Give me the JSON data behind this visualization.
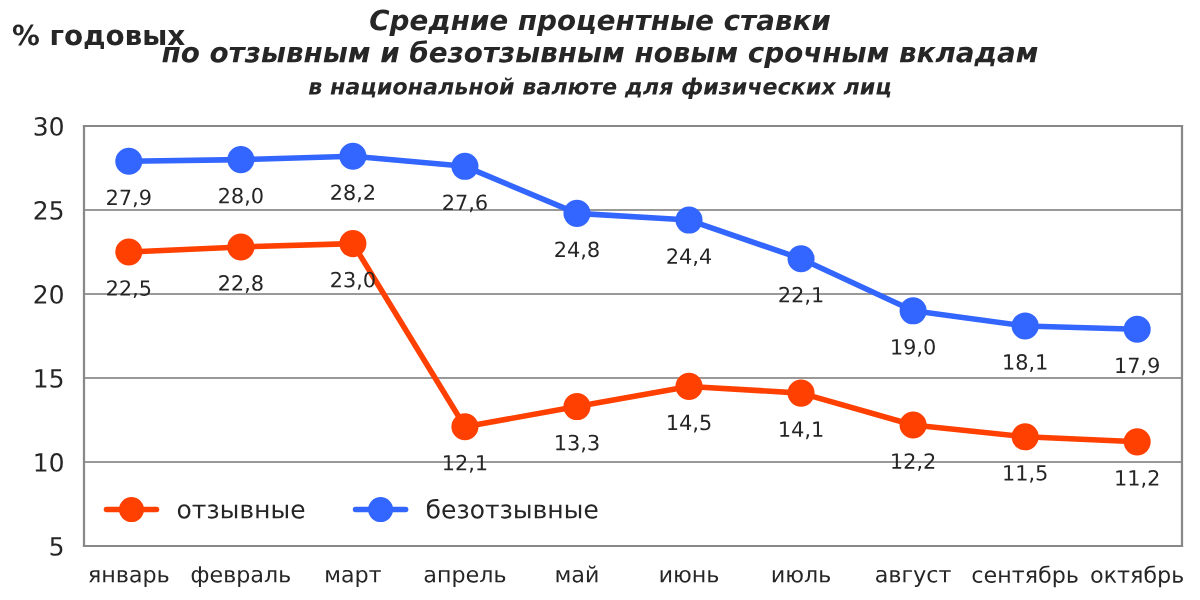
{
  "chart_data": {
    "type": "line",
    "title": "Средние процентные ставки\nпо отзывным и безотзывным новым срочным вкладам",
    "subtitle": "в национальной валюте для физических лиц",
    "ylabel": "% годовых",
    "categories": [
      "январь",
      "февраль",
      "март",
      "апрель",
      "май",
      "июнь",
      "июль",
      "август",
      "сентябрь",
      "октябрь"
    ],
    "series": [
      {
        "name": "отзывные",
        "color": "#ff4000",
        "values": [
          22.5,
          22.8,
          23.0,
          12.1,
          13.3,
          14.5,
          14.1,
          12.2,
          11.5,
          11.2
        ],
        "value_labels": [
          "22,5",
          "22,8",
          "23,0",
          "12,1",
          "13,3",
          "14,5",
          "14,1",
          "12,2",
          "11,5",
          "11,2"
        ]
      },
      {
        "name": "безотзывные",
        "color": "#3366ff",
        "values": [
          27.9,
          28.0,
          28.2,
          27.6,
          24.8,
          24.4,
          22.1,
          19.0,
          18.1,
          17.9
        ],
        "value_labels": [
          "27,9",
          "28,0",
          "28,2",
          "27,6",
          "24,8",
          "24,4",
          "22,1",
          "19,0",
          "18,1",
          "17,9"
        ]
      }
    ],
    "ylim": [
      5,
      30
    ],
    "yticks": [
      5,
      10,
      15,
      20,
      25,
      30
    ],
    "grid": "y",
    "legend": "bottom left",
    "marker": "circle",
    "line_style": "solid"
  }
}
